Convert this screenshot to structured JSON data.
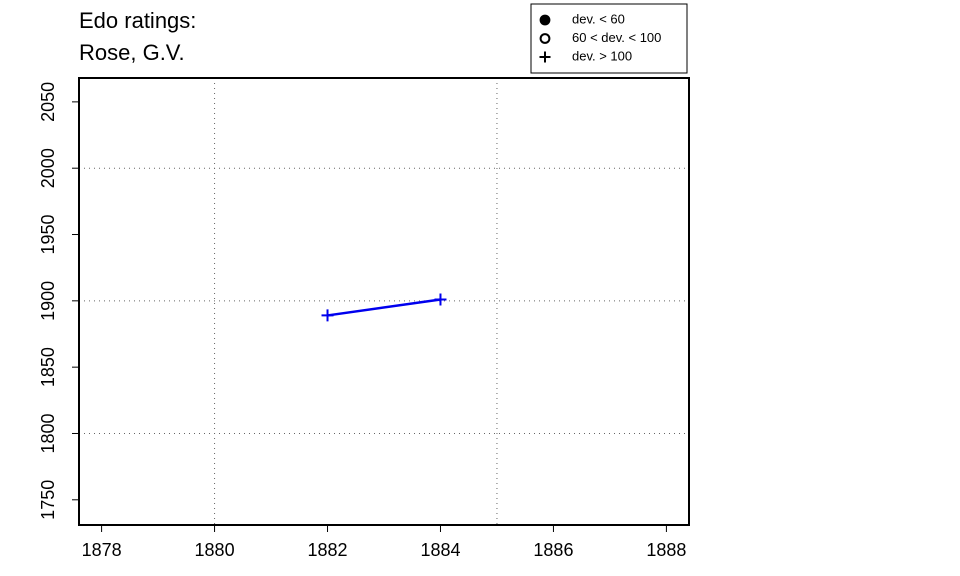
{
  "chart_data": {
    "type": "line",
    "title": [
      "Edo ratings:",
      "Rose, G.V."
    ],
    "x": [
      1882,
      1884
    ],
    "series": [
      {
        "color": "#0000ee",
        "marker": "plus",
        "values": [
          1889,
          1901
        ]
      }
    ],
    "xlim": [
      1877.6,
      1888.4
    ],
    "ylim": [
      1731,
      2068
    ],
    "xticks": [
      1878,
      1880,
      1882,
      1884,
      1886,
      1888
    ],
    "yticks": [
      1750,
      1800,
      1850,
      1900,
      1950,
      2000,
      2050
    ],
    "xgrid": [
      1880,
      1885
    ],
    "ygrid": [
      1800,
      1900,
      2000
    ],
    "legend": [
      {
        "label": "dev. < 60",
        "marker": "filled-circle"
      },
      {
        "label": "60 < dev. < 100",
        "marker": "open-circle"
      },
      {
        "label": "dev. > 100",
        "marker": "plus"
      }
    ]
  }
}
